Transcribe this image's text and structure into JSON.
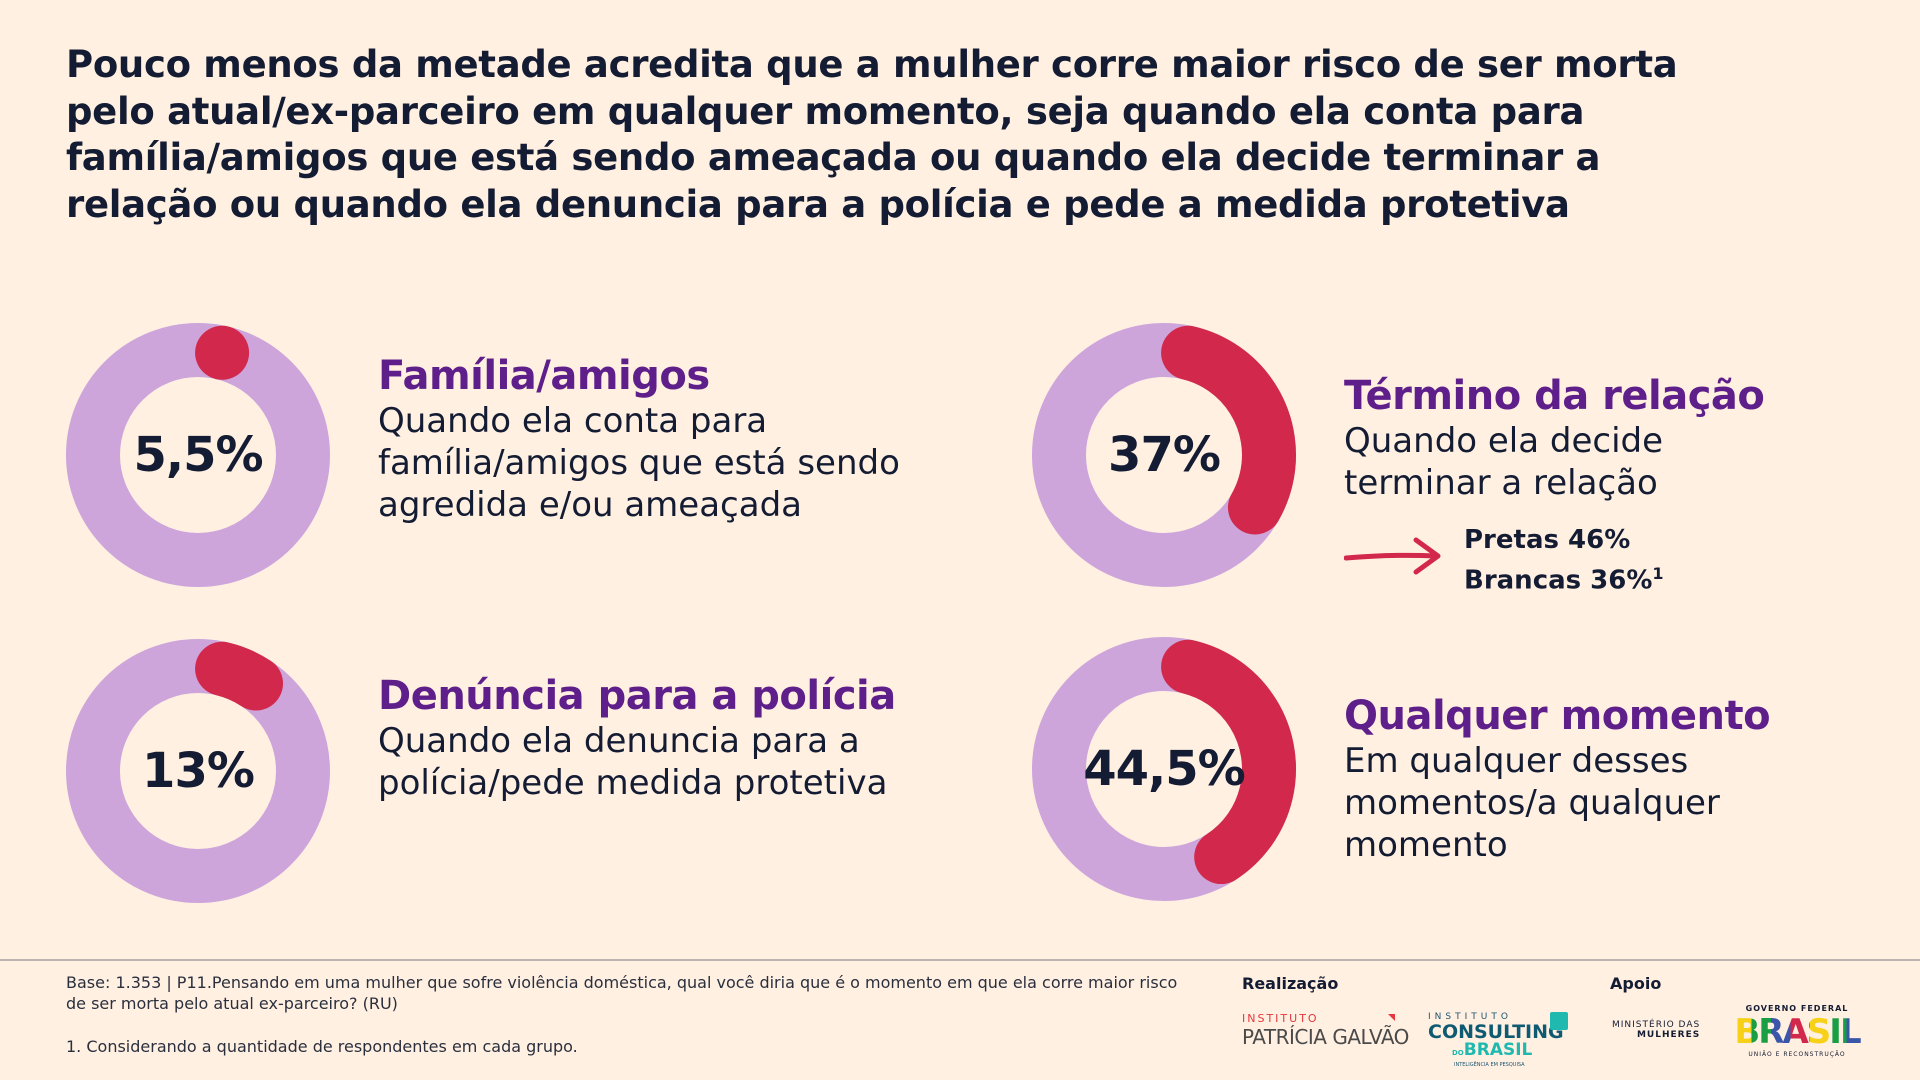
{
  "title": "Pouco menos da metade acredita que a mulher corre maior risco de ser morta pelo atual/ex-parceiro em qualquer momento, seja quando ela conta para família/amigos que está sendo ameaçada ou quando ela decide terminar a relação ou quando ela denuncia para a polícia e pede a medida protetiva",
  "colors": {
    "background": "#fff0e2",
    "ring": "#cda5db",
    "highlight": "#d2284b",
    "heading": "#5e1f8a",
    "text": "#141c33"
  },
  "chart_data": {
    "type": "donut",
    "items": [
      {
        "label": "5,5%",
        "value": 5.5,
        "heading": "Família/amigos",
        "description": "Quando ela conta para família/amigos que está sendo agredida e/ou ameaçada"
      },
      {
        "label": "37%",
        "value": 37,
        "heading": "Término da relação",
        "description": "Quando ela decide terminar a relação"
      },
      {
        "label": "13%",
        "value": 13,
        "heading": "Denúncia para a polícia",
        "description": "Quando ela denuncia para a polícia/pede medida protetiva"
      },
      {
        "label": "44,5%",
        "value": 44.5,
        "heading": "Qualquer momento",
        "description": "Em qualquer desses momentos/a qualquer momento"
      }
    ],
    "breakdown": {
      "line1": "Pretas 46%",
      "line2": "Brancas 36%",
      "footnote_mark": "1"
    }
  },
  "footer": {
    "base": "Base: 1.353 | P11.Pensando em uma mulher que sofre violência doméstica, qual você diria que é o momento em que ela corre maior risco de ser morta pelo atual ex-parceiro? (RU)",
    "note": "1. Considerando a quantidade de respondentes em cada grupo.",
    "realizacao": "Realização",
    "apoio": "Apoio",
    "logos": {
      "patricia_top": "INSTITUTO",
      "patricia_main": "PATRÍCIA GALVÃO",
      "consulting_top": "INSTITUTO",
      "consulting_main": "CONSULTING",
      "consulting_do": "DO",
      "consulting_brasil": "BRASIL",
      "consulting_tag": "INTELIGÊNCIA EM PESQUISA",
      "ministerio_1": "MINISTÉRIO DAS",
      "ministerio_2": "MULHERES",
      "gov_top": "GOVERNO FEDERAL",
      "gov_main": "BRASIL",
      "gov_bottom": "UNIÃO E RECONSTRUÇÃO"
    }
  }
}
